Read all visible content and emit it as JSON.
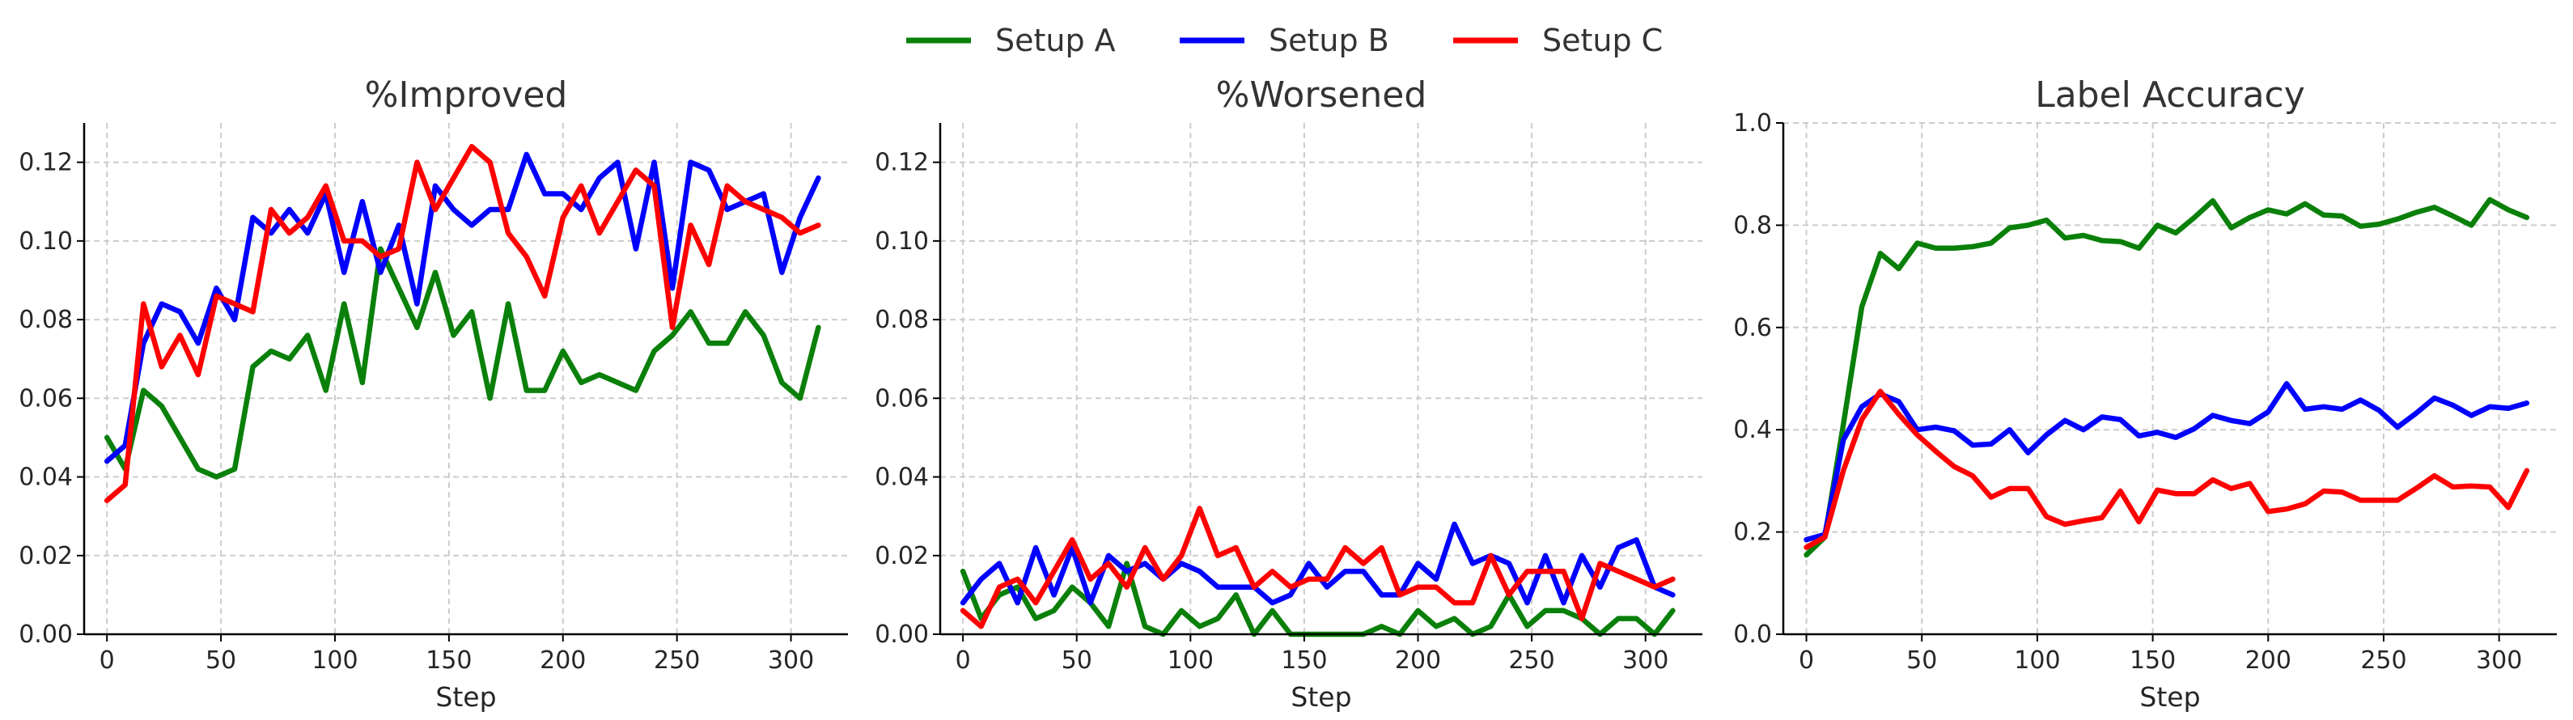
{
  "legend": [
    {
      "name": "Setup A",
      "color": "#0a800a"
    },
    {
      "name": "Setup B",
      "color": "#0000ff"
    },
    {
      "name": "Setup C",
      "color": "#ff0000"
    }
  ],
  "chart_data": [
    {
      "type": "line",
      "title": "%Improved",
      "xlabel": "Step",
      "ylabel": "",
      "xlim": [
        -10,
        325
      ],
      "ylim": [
        0,
        0.13
      ],
      "xticks": [
        "0",
        "50",
        "100",
        "150",
        "200",
        "250",
        "300"
      ],
      "xtick_values": [
        0,
        50,
        100,
        150,
        200,
        250,
        300
      ],
      "yticks": [
        "0.00",
        "0.02",
        "0.04",
        "0.06",
        "0.08",
        "0.10",
        "0.12"
      ],
      "ytick_values": [
        0,
        0.02,
        0.04,
        0.06,
        0.08,
        0.1,
        0.12
      ],
      "grid": true,
      "x": [
        0,
        8,
        16,
        24,
        32,
        40,
        48,
        56,
        64,
        72,
        80,
        88,
        96,
        104,
        112,
        120,
        128,
        136,
        144,
        152,
        160,
        168,
        176,
        184,
        192,
        200,
        208,
        216,
        224,
        232,
        240,
        248,
        256,
        264,
        272,
        280,
        288,
        296,
        304,
        312
      ],
      "series": [
        {
          "name": "Setup A",
          "color": "#0a800a",
          "values": [
            0.05,
            0.042,
            0.062,
            0.058,
            0.05,
            0.042,
            0.04,
            0.042,
            0.068,
            0.072,
            0.07,
            0.076,
            0.062,
            0.084,
            0.064,
            0.098,
            0.088,
            0.078,
            0.092,
            0.076,
            0.082,
            0.06,
            0.084,
            0.062,
            0.062,
            0.072,
            0.064,
            0.066,
            0.064,
            0.062,
            0.072,
            0.076,
            0.082,
            0.074,
            0.074,
            0.082,
            0.076,
            0.064,
            0.06,
            0.078
          ]
        },
        {
          "name": "Setup B",
          "color": "#0000ff",
          "values": [
            0.044,
            0.048,
            0.074,
            0.084,
            0.082,
            0.074,
            0.088,
            0.08,
            0.106,
            0.102,
            0.108,
            0.102,
            0.112,
            0.092,
            0.11,
            0.092,
            0.104,
            0.084,
            0.114,
            0.108,
            0.104,
            0.108,
            0.108,
            0.122,
            0.112,
            0.112,
            0.108,
            0.116,
            0.12,
            0.098,
            0.12,
            0.088,
            0.12,
            0.118,
            0.108,
            0.11,
            0.112,
            0.092,
            0.106,
            0.116
          ]
        },
        {
          "name": "Setup C",
          "color": "#ff0000",
          "values": [
            0.034,
            0.038,
            0.084,
            0.068,
            0.076,
            0.066,
            0.086,
            0.084,
            0.082,
            0.108,
            0.102,
            0.106,
            0.114,
            0.1,
            0.1,
            0.096,
            0.098,
            0.12,
            0.108,
            0.116,
            0.124,
            0.12,
            0.102,
            0.096,
            0.086,
            0.106,
            0.114,
            0.102,
            0.11,
            0.118,
            0.114,
            0.078,
            0.104,
            0.094,
            0.114,
            0.11,
            0.108,
            0.106,
            0.102,
            0.104
          ]
        }
      ]
    },
    {
      "type": "line",
      "title": "%Worsened",
      "xlabel": "Step",
      "ylabel": "",
      "xlim": [
        -10,
        325
      ],
      "ylim": [
        0,
        0.13
      ],
      "xticks": [
        "0",
        "50",
        "100",
        "150",
        "200",
        "250",
        "300"
      ],
      "xtick_values": [
        0,
        50,
        100,
        150,
        200,
        250,
        300
      ],
      "yticks": [
        "0.00",
        "0.02",
        "0.04",
        "0.06",
        "0.08",
        "0.10",
        "0.12"
      ],
      "ytick_values": [
        0,
        0.02,
        0.04,
        0.06,
        0.08,
        0.1,
        0.12
      ],
      "grid": true,
      "x": [
        0,
        8,
        16,
        24,
        32,
        40,
        48,
        56,
        64,
        72,
        80,
        88,
        96,
        104,
        112,
        120,
        128,
        136,
        144,
        152,
        160,
        168,
        176,
        184,
        192,
        200,
        208,
        216,
        224,
        232,
        240,
        248,
        256,
        264,
        272,
        280,
        288,
        296,
        304,
        312
      ],
      "series": [
        {
          "name": "Setup A",
          "color": "#0a800a",
          "values": [
            0.016,
            0.004,
            0.01,
            0.012,
            0.004,
            0.006,
            0.012,
            0.008,
            0.002,
            0.018,
            0.002,
            0.0,
            0.006,
            0.002,
            0.004,
            0.01,
            0.0,
            0.006,
            0.0,
            0.0,
            0.0,
            0.0,
            0.0,
            0.002,
            0.0,
            0.006,
            0.002,
            0.004,
            0.0,
            0.002,
            0.01,
            0.002,
            0.006,
            0.006,
            0.004,
            0.0,
            0.004,
            0.004,
            0.0,
            0.006
          ]
        },
        {
          "name": "Setup B",
          "color": "#0000ff",
          "values": [
            0.008,
            0.014,
            0.018,
            0.008,
            0.022,
            0.01,
            0.022,
            0.008,
            0.02,
            0.016,
            0.018,
            0.014,
            0.018,
            0.016,
            0.012,
            0.012,
            0.012,
            0.008,
            0.01,
            0.018,
            0.012,
            0.016,
            0.016,
            0.01,
            0.01,
            0.018,
            0.014,
            0.028,
            0.018,
            0.02,
            0.018,
            0.008,
            0.02,
            0.008,
            0.02,
            0.012,
            0.022,
            0.024,
            0.012,
            0.01
          ]
        },
        {
          "name": "Setup C",
          "color": "#ff0000",
          "values": [
            0.006,
            0.002,
            0.012,
            0.014,
            0.008,
            0.016,
            0.024,
            0.014,
            0.018,
            0.012,
            0.022,
            0.014,
            0.02,
            0.032,
            0.02,
            0.022,
            0.012,
            0.016,
            0.012,
            0.014,
            0.014,
            0.022,
            0.018,
            0.022,
            0.01,
            0.012,
            0.012,
            0.008,
            0.008,
            0.02,
            0.01,
            0.016,
            0.016,
            0.016,
            0.004,
            0.018,
            0.016,
            0.014,
            0.012,
            0.014
          ]
        }
      ]
    },
    {
      "type": "line",
      "title": "Label Accuracy",
      "xlabel": "Step",
      "ylabel": "",
      "xlim": [
        -10,
        325
      ],
      "ylim": [
        0,
        1.0
      ],
      "xticks": [
        "0",
        "50",
        "100",
        "150",
        "200",
        "250",
        "300"
      ],
      "xtick_values": [
        0,
        50,
        100,
        150,
        200,
        250,
        300
      ],
      "yticks": [
        "0.0",
        "0.2",
        "0.4",
        "0.6",
        "0.8",
        "1.0"
      ],
      "ytick_values": [
        0,
        0.2,
        0.4,
        0.6,
        0.8,
        1.0
      ],
      "grid": true,
      "x": [
        0,
        8,
        16,
        24,
        32,
        40,
        48,
        56,
        64,
        72,
        80,
        88,
        96,
        104,
        112,
        120,
        128,
        136,
        144,
        152,
        160,
        168,
        176,
        184,
        192,
        200,
        208,
        216,
        224,
        232,
        240,
        248,
        256,
        264,
        272,
        280,
        288,
        296,
        304,
        312
      ],
      "series": [
        {
          "name": "Setup A",
          "color": "#0a800a",
          "values": [
            0.155,
            0.19,
            0.41,
            0.64,
            0.745,
            0.715,
            0.765,
            0.755,
            0.755,
            0.758,
            0.765,
            0.795,
            0.8,
            0.81,
            0.775,
            0.78,
            0.77,
            0.768,
            0.755,
            0.8,
            0.785,
            0.815,
            0.848,
            0.795,
            0.815,
            0.83,
            0.822,
            0.842,
            0.82,
            0.818,
            0.798,
            0.802,
            0.812,
            0.825,
            0.835,
            0.818,
            0.8,
            0.85,
            0.83,
            0.815
          ]
        },
        {
          "name": "Setup B",
          "color": "#0000ff",
          "values": [
            0.185,
            0.195,
            0.38,
            0.445,
            0.47,
            0.455,
            0.4,
            0.405,
            0.398,
            0.37,
            0.372,
            0.4,
            0.355,
            0.39,
            0.418,
            0.4,
            0.425,
            0.42,
            0.388,
            0.395,
            0.385,
            0.402,
            0.428,
            0.418,
            0.412,
            0.435,
            0.49,
            0.44,
            0.445,
            0.44,
            0.458,
            0.438,
            0.405,
            0.432,
            0.462,
            0.448,
            0.428,
            0.445,
            0.442,
            0.452
          ]
        },
        {
          "name": "Setup C",
          "color": "#ff0000",
          "values": [
            0.17,
            0.19,
            0.32,
            0.42,
            0.475,
            0.43,
            0.39,
            0.358,
            0.328,
            0.31,
            0.268,
            0.285,
            0.285,
            0.23,
            0.215,
            0.222,
            0.228,
            0.28,
            0.22,
            0.282,
            0.275,
            0.275,
            0.302,
            0.285,
            0.295,
            0.24,
            0.245,
            0.255,
            0.28,
            0.278,
            0.262,
            0.262,
            0.262,
            0.285,
            0.31,
            0.288,
            0.29,
            0.288,
            0.248,
            0.32
          ]
        }
      ]
    }
  ]
}
